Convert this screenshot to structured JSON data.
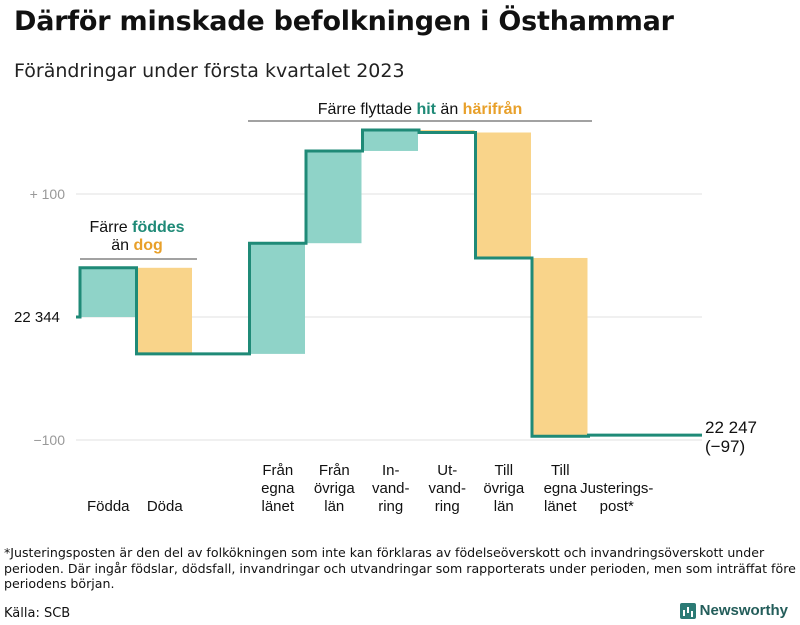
{
  "colors": {
    "increase": "#8fd3c8",
    "decrease": "#f9d48a",
    "line": "#1f8a77",
    "hit": "#1f8a77",
    "harifran": "#e8a02a",
    "grid": "#e2e2e2",
    "axis": "#999999"
  },
  "chart_data": {
    "type": "waterfall",
    "title": "Därför minskade befolkningen i Östhammar",
    "subtitle": "Förändringar under första kvartalet 2023",
    "start_value": 22344,
    "start_label": "22 344",
    "end_label": "22 247",
    "end_change_label": "(−97)",
    "yticks": [
      {
        "value": 100,
        "label": "+ 100"
      },
      {
        "value": -100,
        "label": "−100"
      }
    ],
    "steps": [
      {
        "label": [
          "Födda"
        ],
        "change": 40,
        "color": "#8fd3c8"
      },
      {
        "label": [
          "Döda"
        ],
        "change": -70,
        "color": "#f9d48a"
      },
      {
        "label": [],
        "change": 0,
        "color": "#8fd3c8"
      },
      {
        "label": [
          "Från",
          "egna",
          "länet"
        ],
        "change": 90,
        "color": "#8fd3c8"
      },
      {
        "label": [
          "Från",
          "övriga",
          "län"
        ],
        "change": 75,
        "color": "#8fd3c8"
      },
      {
        "label": [
          "In-",
          "vand-",
          "ring"
        ],
        "change": 17,
        "color": "#8fd3c8"
      },
      {
        "label": [
          "Ut-",
          "vand-",
          "ring"
        ],
        "change": -2,
        "color": "#f9d48a"
      },
      {
        "label": [
          "Till",
          "övriga",
          "län"
        ],
        "change": -102,
        "color": "#f9d48a"
      },
      {
        "label": [
          "Till",
          "egna",
          "länet"
        ],
        "change": -145,
        "color": "#f9d48a"
      },
      {
        "label": [
          "Justerings-",
          "post*"
        ],
        "change": 1,
        "color": "#8fd3c8"
      }
    ],
    "annotations": {
      "births": {
        "prefix": "Färre ",
        "highlight1": "föddes",
        "line2_prefix": "än ",
        "highlight2": "dog"
      },
      "moves": {
        "prefix": "Färre flyttade ",
        "highlight1": "hit",
        "middle": " än ",
        "highlight2": "härifrån"
      }
    }
  },
  "footnote": "*Justeringsposten är den del av folkökningen som inte kan förklaras av födelseöverskott och invandringsöverskott under perioden. Där ingår födslar, dödsfall, invandringar och utvandringar som rapporterats under perioden, men som inträffat före periodens början.",
  "source": "Källa: SCB",
  "brand": "Newsworthy"
}
